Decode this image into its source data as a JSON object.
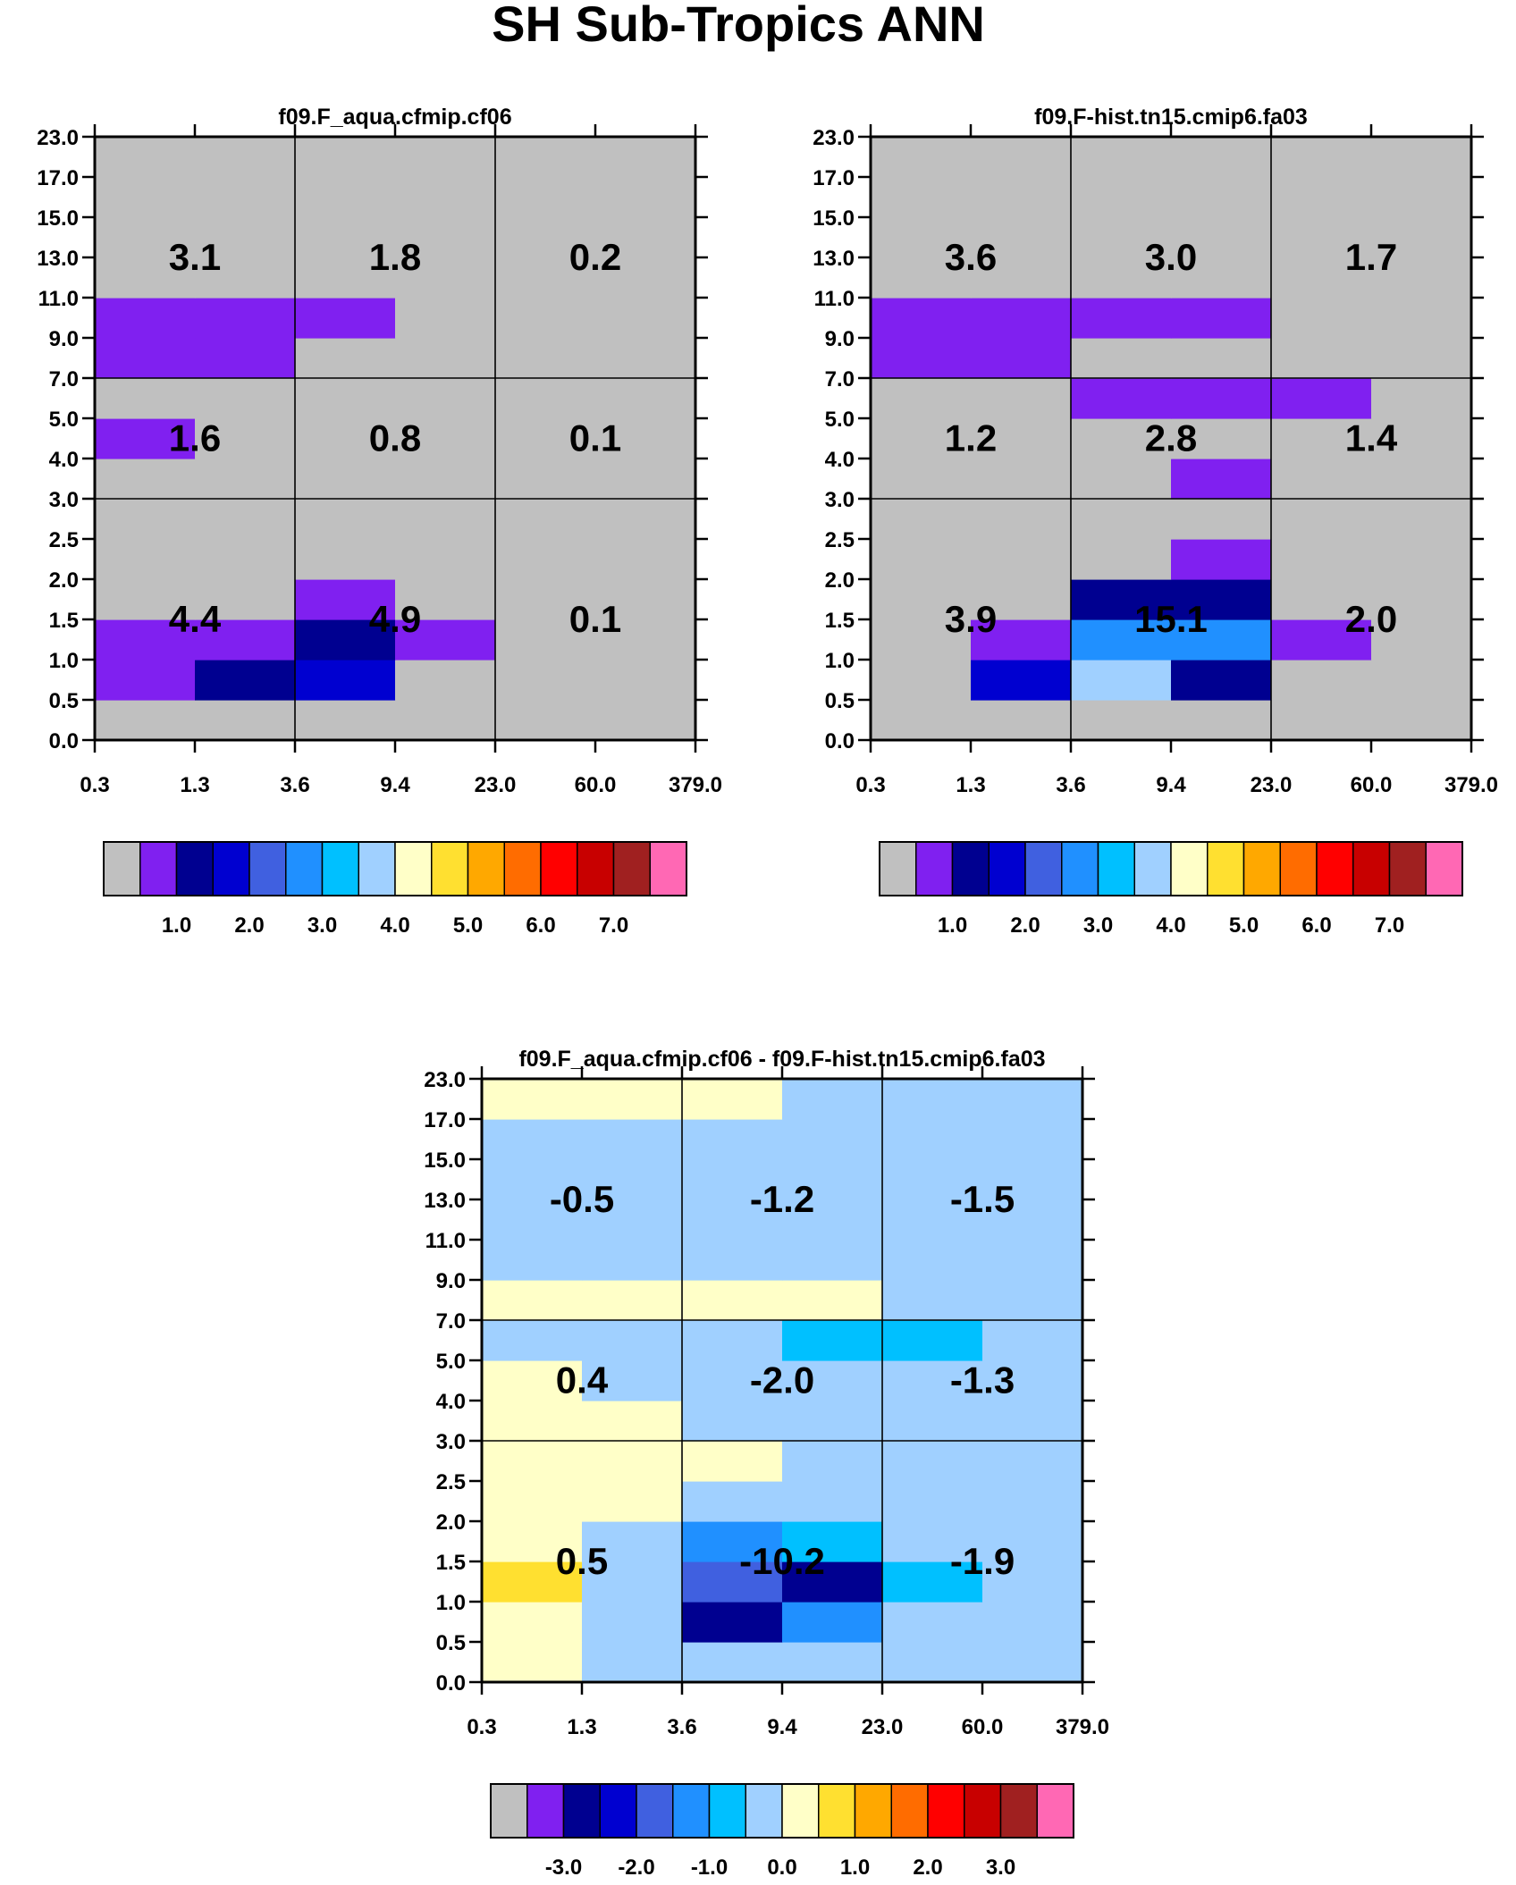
{
  "title": "SH Sub-Tropics ANN",
  "palette": {
    "colors": [
      "#c0c0c0",
      "#8020f0",
      "#000090",
      "#0000d0",
      "#4060e0",
      "#2090ff",
      "#00c0ff",
      "#a0d0ff",
      "#ffffc8",
      "#ffe030",
      "#ffa800",
      "#ff6c00",
      "#ff0000",
      "#c80000",
      "#a02020",
      "#ff68b4"
    ]
  },
  "chart_data": [
    {
      "type": "heatmap",
      "title": "f09.F_aqua.cfmip.cf06",
      "x_ticks": [
        "0.3",
        "1.3",
        "3.6",
        "9.4",
        "23.0",
        "60.0",
        "379.0"
      ],
      "y_ticks": [
        "0.0",
        "0.5",
        "1.0",
        "1.5",
        "2.0",
        "2.5",
        "3.0",
        "4.0",
        "5.0",
        "7.0",
        "9.0",
        "11.0",
        "13.0",
        "15.0",
        "17.0",
        "23.0"
      ],
      "grid": [
        [
          0,
          0,
          0,
          0,
          0,
          0
        ],
        [
          1,
          2,
          3,
          0,
          0,
          0
        ],
        [
          1,
          1,
          2,
          1,
          0,
          0
        ],
        [
          0,
          0,
          1,
          0,
          0,
          0
        ],
        [
          0,
          0,
          0,
          0,
          0,
          0
        ],
        [
          0,
          0,
          0,
          0,
          0,
          0
        ],
        [
          0,
          0,
          0,
          0,
          0,
          0
        ],
        [
          1,
          0,
          0,
          0,
          0,
          0
        ],
        [
          0,
          0,
          0,
          0,
          0,
          0
        ],
        [
          1,
          1,
          0,
          0,
          0,
          0
        ],
        [
          1,
          1,
          1,
          0,
          0,
          0
        ],
        [
          0,
          0,
          0,
          0,
          0,
          0
        ],
        [
          0,
          0,
          0,
          0,
          0,
          0
        ],
        [
          0,
          0,
          0,
          0,
          0,
          0
        ],
        [
          0,
          0,
          0,
          0,
          0,
          0
        ]
      ],
      "box_labels": [
        [
          "3.1",
          "1.8",
          "0.2"
        ],
        [
          "1.6",
          "0.8",
          "0.1"
        ],
        [
          "4.4",
          "4.9",
          "0.1"
        ]
      ],
      "colorbar_labels": [
        "1.0",
        "2.0",
        "3.0",
        "4.0",
        "5.0",
        "6.0",
        "7.0"
      ]
    },
    {
      "type": "heatmap",
      "title": "f09.F-hist.tn15.cmip6.fa03",
      "x_ticks": [
        "0.3",
        "1.3",
        "3.6",
        "9.4",
        "23.0",
        "60.0",
        "379.0"
      ],
      "y_ticks": [
        "0.0",
        "0.5",
        "1.0",
        "1.5",
        "2.0",
        "2.5",
        "3.0",
        "4.0",
        "5.0",
        "7.0",
        "9.0",
        "11.0",
        "13.0",
        "15.0",
        "17.0",
        "23.0"
      ],
      "grid": [
        [
          0,
          0,
          0,
          0,
          0,
          0
        ],
        [
          0,
          3,
          7,
          2,
          0,
          0
        ],
        [
          0,
          1,
          5,
          5,
          1,
          0
        ],
        [
          0,
          0,
          2,
          2,
          0,
          0
        ],
        [
          0,
          0,
          0,
          1,
          0,
          0
        ],
        [
          0,
          0,
          0,
          0,
          0,
          0
        ],
        [
          0,
          0,
          0,
          1,
          0,
          0
        ],
        [
          0,
          0,
          0,
          0,
          0,
          0
        ],
        [
          0,
          0,
          1,
          1,
          1,
          0
        ],
        [
          1,
          1,
          0,
          0,
          0,
          0
        ],
        [
          1,
          1,
          1,
          1,
          0,
          0
        ],
        [
          0,
          0,
          0,
          0,
          0,
          0
        ],
        [
          0,
          0,
          0,
          0,
          0,
          0
        ],
        [
          0,
          0,
          0,
          0,
          0,
          0
        ],
        [
          0,
          0,
          0,
          0,
          0,
          0
        ]
      ],
      "box_labels": [
        [
          "3.6",
          "3.0",
          "1.7"
        ],
        [
          "1.2",
          "2.8",
          "1.4"
        ],
        [
          "3.9",
          "15.1",
          "2.0"
        ]
      ],
      "colorbar_labels": [
        "1.0",
        "2.0",
        "3.0",
        "4.0",
        "5.0",
        "6.0",
        "7.0"
      ]
    },
    {
      "type": "heatmap",
      "title": "f09.F_aqua.cfmip.cf06 - f09.F-hist.tn15.cmip6.fa03",
      "x_ticks": [
        "0.3",
        "1.3",
        "3.6",
        "9.4",
        "23.0",
        "60.0",
        "379.0"
      ],
      "y_ticks": [
        "0.0",
        "0.5",
        "1.0",
        "1.5",
        "2.0",
        "2.5",
        "3.0",
        "4.0",
        "5.0",
        "7.0",
        "9.0",
        "11.0",
        "13.0",
        "15.0",
        "17.0",
        "23.0"
      ],
      "grid": [
        [
          8,
          7,
          7,
          7,
          7,
          7
        ],
        [
          8,
          7,
          2,
          5,
          7,
          7
        ],
        [
          9,
          7,
          4,
          2,
          6,
          7
        ],
        [
          8,
          7,
          5,
          6,
          7,
          7
        ],
        [
          8,
          8,
          7,
          7,
          7,
          7
        ],
        [
          8,
          8,
          8,
          7,
          7,
          7
        ],
        [
          8,
          8,
          7,
          7,
          7,
          7
        ],
        [
          8,
          7,
          7,
          7,
          7,
          7
        ],
        [
          7,
          7,
          7,
          6,
          6,
          7
        ],
        [
          8,
          8,
          8,
          8,
          7,
          7
        ],
        [
          7,
          7,
          7,
          7,
          7,
          7
        ],
        [
          7,
          7,
          7,
          7,
          7,
          7
        ],
        [
          7,
          7,
          7,
          7,
          7,
          7
        ],
        [
          7,
          7,
          7,
          7,
          7,
          7
        ],
        [
          8,
          8,
          8,
          7,
          7,
          7
        ]
      ],
      "box_labels": [
        [
          "-0.5",
          "-1.2",
          "-1.5"
        ],
        [
          "0.4",
          "-2.0",
          "-1.3"
        ],
        [
          "0.5",
          "-10.2",
          "-1.9"
        ]
      ],
      "colorbar_labels": [
        "-3.0",
        "-2.0",
        "-1.0",
        "0.0",
        "1.0",
        "2.0",
        "3.0"
      ]
    }
  ]
}
